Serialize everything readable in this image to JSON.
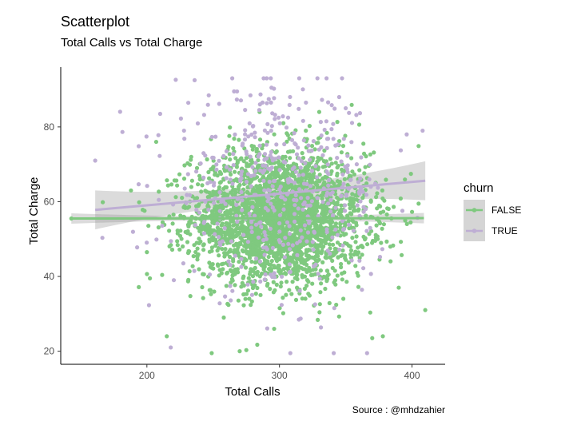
{
  "chart_data": {
    "type": "scatter",
    "title": "Scatterplot",
    "subtitle": "Total Calls vs Total Charge",
    "xlabel": "Total Calls",
    "ylabel": "Total Charge",
    "caption": "Source : @mhdzahier",
    "xlim": [
      135,
      425
    ],
    "ylim": [
      16.5,
      96
    ],
    "xticks": [
      200,
      300,
      400
    ],
    "yticks": [
      20,
      40,
      60,
      80
    ],
    "grid": false,
    "legend": {
      "title": "churn",
      "position": "right"
    },
    "series": [
      {
        "name": "FALSE",
        "color": "#7fc97f",
        "point_count": 2850,
        "x_mean": 300,
        "x_sd": 33,
        "y_mean": 55.7,
        "y_sd": 8.8,
        "trend": {
          "x": [
            143,
            409
          ],
          "y": [
            55.5,
            55.6
          ]
        },
        "highlight_points": [
          {
            "x": 143,
            "y": 55.5
          },
          {
            "x": 410,
            "y": 31.0
          },
          {
            "x": 215,
            "y": 24.0
          },
          {
            "x": 270,
            "y": 20.0
          },
          {
            "x": 275,
            "y": 20.3
          },
          {
            "x": 378,
            "y": 24.0
          },
          {
            "x": 370,
            "y": 23.5
          },
          {
            "x": 200,
            "y": 46.5
          },
          {
            "x": 207,
            "y": 76.0
          },
          {
            "x": 188,
            "y": 63.0
          },
          {
            "x": 285,
            "y": 84.0
          },
          {
            "x": 330,
            "y": 84.0
          },
          {
            "x": 390,
            "y": 37.0
          },
          {
            "x": 258,
            "y": 29.0
          },
          {
            "x": 296,
            "y": 26.0
          }
        ]
      },
      {
        "name": "TRUE",
        "color": "#beaed4",
        "point_count": 480,
        "x_mean": 300,
        "x_sd": 40,
        "y_mean": 62.5,
        "y_sd": 13.0,
        "trend": {
          "x": [
            161,
            410
          ],
          "y": [
            57.8,
            65.6
          ]
        },
        "highlight_points": [
          {
            "x": 161,
            "y": 71.0
          },
          {
            "x": 236,
            "y": 92.5
          },
          {
            "x": 268,
            "y": 89.5
          },
          {
            "x": 294,
            "y": 90.5
          },
          {
            "x": 320,
            "y": 86.5
          },
          {
            "x": 308,
            "y": 88.0
          },
          {
            "x": 210,
            "y": 83.5
          },
          {
            "x": 408,
            "y": 79.0
          },
          {
            "x": 396,
            "y": 78.0
          },
          {
            "x": 218,
            "y": 21.0
          },
          {
            "x": 228,
            "y": 79.0
          },
          {
            "x": 350,
            "y": 85.0
          }
        ]
      }
    ]
  }
}
